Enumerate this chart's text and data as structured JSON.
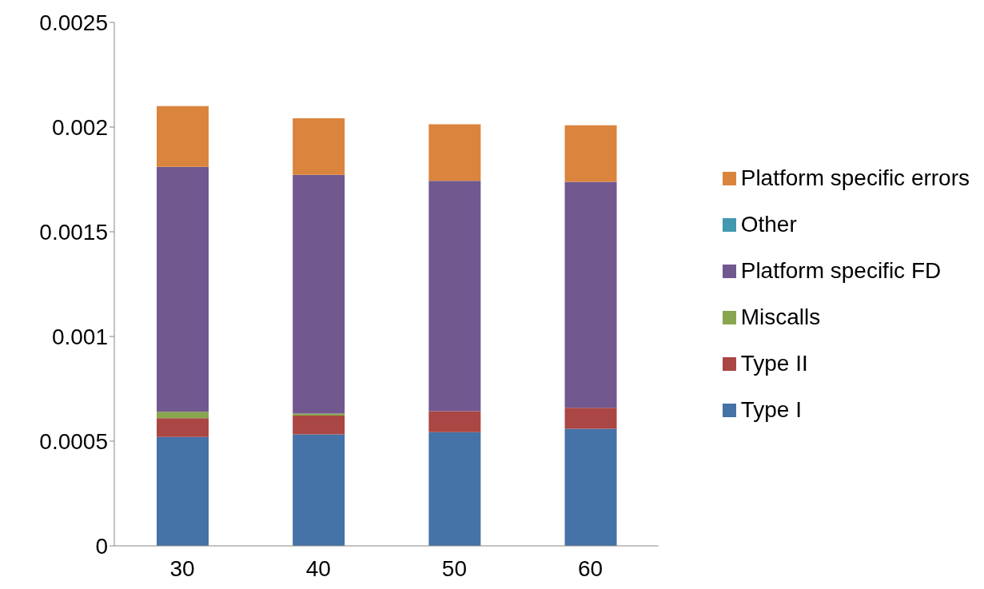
{
  "chart_data": {
    "type": "bar",
    "stacked": true,
    "categories": [
      "30",
      "40",
      "50",
      "60"
    ],
    "series": [
      {
        "name": "Type I",
        "color": "#4572a7",
        "values": [
          0.00052,
          0.000532,
          0.000543,
          0.000559
        ]
      },
      {
        "name": "Type II",
        "color": "#aa4643",
        "values": [
          9e-05,
          9e-05,
          0.0001,
          0.0001
        ]
      },
      {
        "name": "Miscalls",
        "color": "#89a54e",
        "values": [
          3e-05,
          1e-05,
          0,
          0
        ]
      },
      {
        "name": "Platform specific FD",
        "color": "#71588f",
        "values": [
          0.00117,
          0.00114,
          0.0011,
          0.00108
        ]
      },
      {
        "name": "Other",
        "color": "#4198af",
        "values": [
          0,
          0,
          0,
          0
        ]
      },
      {
        "name": "Platform specific errors",
        "color": "#db843d",
        "values": [
          0.00029,
          0.00027,
          0.00027,
          0.00027
        ]
      }
    ],
    "ylim": [
      0,
      0.0025
    ],
    "yticks": [
      0,
      0.0005,
      0.001,
      0.0015,
      0.002,
      0.0025
    ],
    "grid": false,
    "legend": "right"
  }
}
